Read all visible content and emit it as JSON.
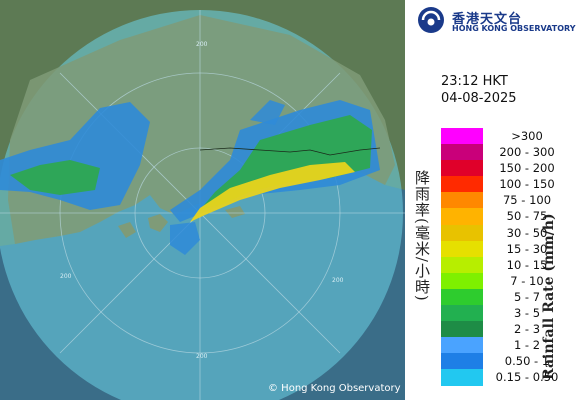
{
  "header": {
    "org_zh": "香港天文台",
    "org_en": "HONG KONG OBSERVATORY",
    "logo_icon": "hko-logo-icon"
  },
  "timestamp": {
    "time": "23:12 HKT",
    "date": "04-08-2025"
  },
  "map": {
    "copyright": "© Hong Kong Observatory",
    "range_ring_label": "200",
    "colors": {
      "sea": "#3a6d88",
      "coverage": "#6bd1e6",
      "land": "#5d7a54",
      "rain_light": "#2f8bd8",
      "rain_mid": "#2ea84a",
      "rain_heavy": "#e8d31c"
    }
  },
  "legend": {
    "title_zh": "降雨率(毫米/小時)",
    "title_en": "Rainfall Rate (mm/h)",
    "items": [
      {
        "label": ">300",
        "color": "#ff00ff"
      },
      {
        "label": "200 - 300",
        "color": "#c9007a"
      },
      {
        "label": "150 - 200",
        "color": "#e0002a"
      },
      {
        "label": "100 - 150",
        "color": "#ff2a00"
      },
      {
        "label": "75 - 100",
        "color": "#ff8800"
      },
      {
        "label": "50 - 75",
        "color": "#ffb300"
      },
      {
        "label": "30 - 50",
        "color": "#e8c200"
      },
      {
        "label": "15 - 30",
        "color": "#e6e000"
      },
      {
        "label": "10 - 15",
        "color": "#b7ee00"
      },
      {
        "label": "7 - 10",
        "color": "#7ef000"
      },
      {
        "label": "5 - 7",
        "color": "#2ecc2e"
      },
      {
        "label": "3 - 5",
        "color": "#22b050"
      },
      {
        "label": "2 - 3",
        "color": "#1e8c46"
      },
      {
        "label": "1 - 2",
        "color": "#4aa3ff"
      },
      {
        "label": "0.50 - 1",
        "color": "#1e7fe6"
      },
      {
        "label": "0.15 - 0.50",
        "color": "#22c8f0"
      }
    ]
  }
}
